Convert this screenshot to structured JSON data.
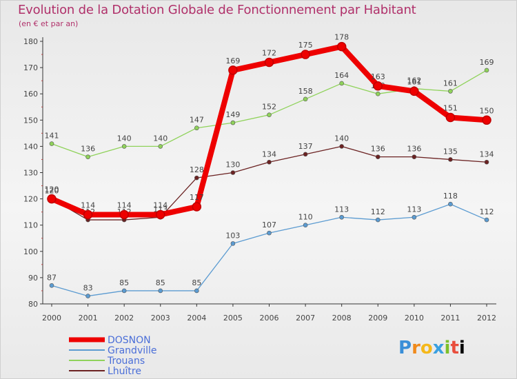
{
  "chart_data": {
    "type": "line",
    "title": "Evolution de la Dotation Globale de Fonctionnement par Habitant",
    "subtitle": "(en € et par an)",
    "xlabel": "",
    "ylabel": "",
    "categories": [
      "2000",
      "2001",
      "2002",
      "2003",
      "2004",
      "2005",
      "2006",
      "2007",
      "2008",
      "2009",
      "2010",
      "2011",
      "2012"
    ],
    "ylim": [
      80,
      180
    ],
    "yticks": [
      80,
      90,
      100,
      110,
      120,
      130,
      140,
      150,
      160,
      170,
      180
    ],
    "grid": false,
    "legend_position": "bottom-left",
    "series": [
      {
        "name": "DOSNON",
        "color": "#ee0000",
        "values": [
          120,
          114,
          114,
          114,
          117,
          169,
          172,
          175,
          178,
          163,
          161,
          151,
          150
        ]
      },
      {
        "name": "Grandville",
        "color": "#5b9bd1",
        "values": [
          87,
          83,
          85,
          85,
          85,
          103,
          107,
          110,
          113,
          112,
          113,
          118,
          112
        ]
      },
      {
        "name": "Trouans",
        "color": "#8fd25a",
        "values": [
          141,
          136,
          140,
          140,
          147,
          149,
          152,
          158,
          164,
          160,
          162,
          161,
          169
        ]
      },
      {
        "name": "Lhuître",
        "color": "#6b2222",
        "values": [
          120,
          112,
          112,
          113,
          128,
          130,
          134,
          137,
          140,
          136,
          136,
          135,
          134
        ]
      }
    ]
  },
  "logo": {
    "letters": [
      "P",
      "r",
      "o",
      "x",
      "i",
      "t",
      "i"
    ]
  }
}
